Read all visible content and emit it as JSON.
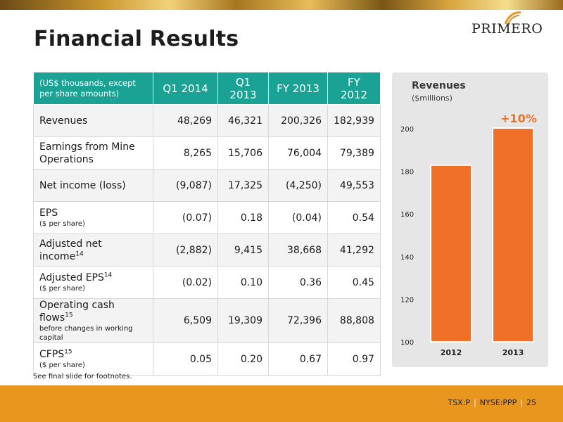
{
  "slide": {
    "title": "Financial Results",
    "logo_text": "PRIMERO",
    "footnote_ref": "See  final slide for footnotes.",
    "footer": {
      "ticker_tsx": "TSX:P",
      "ticker_nyse": "NYSE:PPP",
      "page_number": "25"
    }
  },
  "table": {
    "header_desc": "(US$ thousands, except per share amounts)",
    "columns": [
      "Q1 2014",
      "Q1 2013",
      "FY 2013",
      "FY 2012"
    ],
    "rows": [
      {
        "label": "Revenues",
        "sub": "",
        "sup": "",
        "values": [
          "48,269",
          "46,321",
          "200,326",
          "182,939"
        ]
      },
      {
        "label": "Earnings from Mine Operations",
        "sub": "",
        "sup": "",
        "values": [
          "8,265",
          "15,706",
          "76,004",
          "79,389"
        ]
      },
      {
        "label": "Net income (loss)",
        "sub": "",
        "sup": "",
        "values": [
          "(9,087)",
          "17,325",
          "(4,250)",
          "49,553"
        ]
      },
      {
        "label": "EPS",
        "sub": "($ per share)",
        "sup": "",
        "values": [
          "(0.07)",
          "0.18",
          "(0.04)",
          "0.54"
        ]
      },
      {
        "label": "Adjusted net income",
        "sub": "",
        "sup": "14",
        "values": [
          "(2,882)",
          "9,415",
          "38,668",
          "41,292"
        ]
      },
      {
        "label": "Adjusted EPS",
        "sub": "($ per share)",
        "sup": "14",
        "values": [
          "(0.02)",
          "0.10",
          "0.36",
          "0.45"
        ]
      },
      {
        "label": "Operating cash flows",
        "sub": "before changes in working capital",
        "sup": "15",
        "values": [
          "6,509",
          "19,309",
          "72,396",
          "88,808"
        ]
      },
      {
        "label": "CFPS",
        "sub": "($ per share)",
        "sup": "15",
        "values": [
          "0.05",
          "0.20",
          "0.67",
          "0.97"
        ]
      }
    ]
  },
  "chart_data": {
    "type": "bar",
    "title": "Revenues",
    "subtitle": "($millions)",
    "categories": [
      "2012",
      "2013"
    ],
    "values": [
      182.9,
      200.3
    ],
    "ylim": [
      100,
      200
    ],
    "yticks": [
      "100",
      "120",
      "140",
      "160",
      "180",
      "200"
    ],
    "annotation": "+10%",
    "bar_color": "#f07028",
    "annotation_color": "#f07028",
    "grid": false
  },
  "colors": {
    "header_teal": "#1aa394",
    "footer_orange": "#e8961e"
  }
}
